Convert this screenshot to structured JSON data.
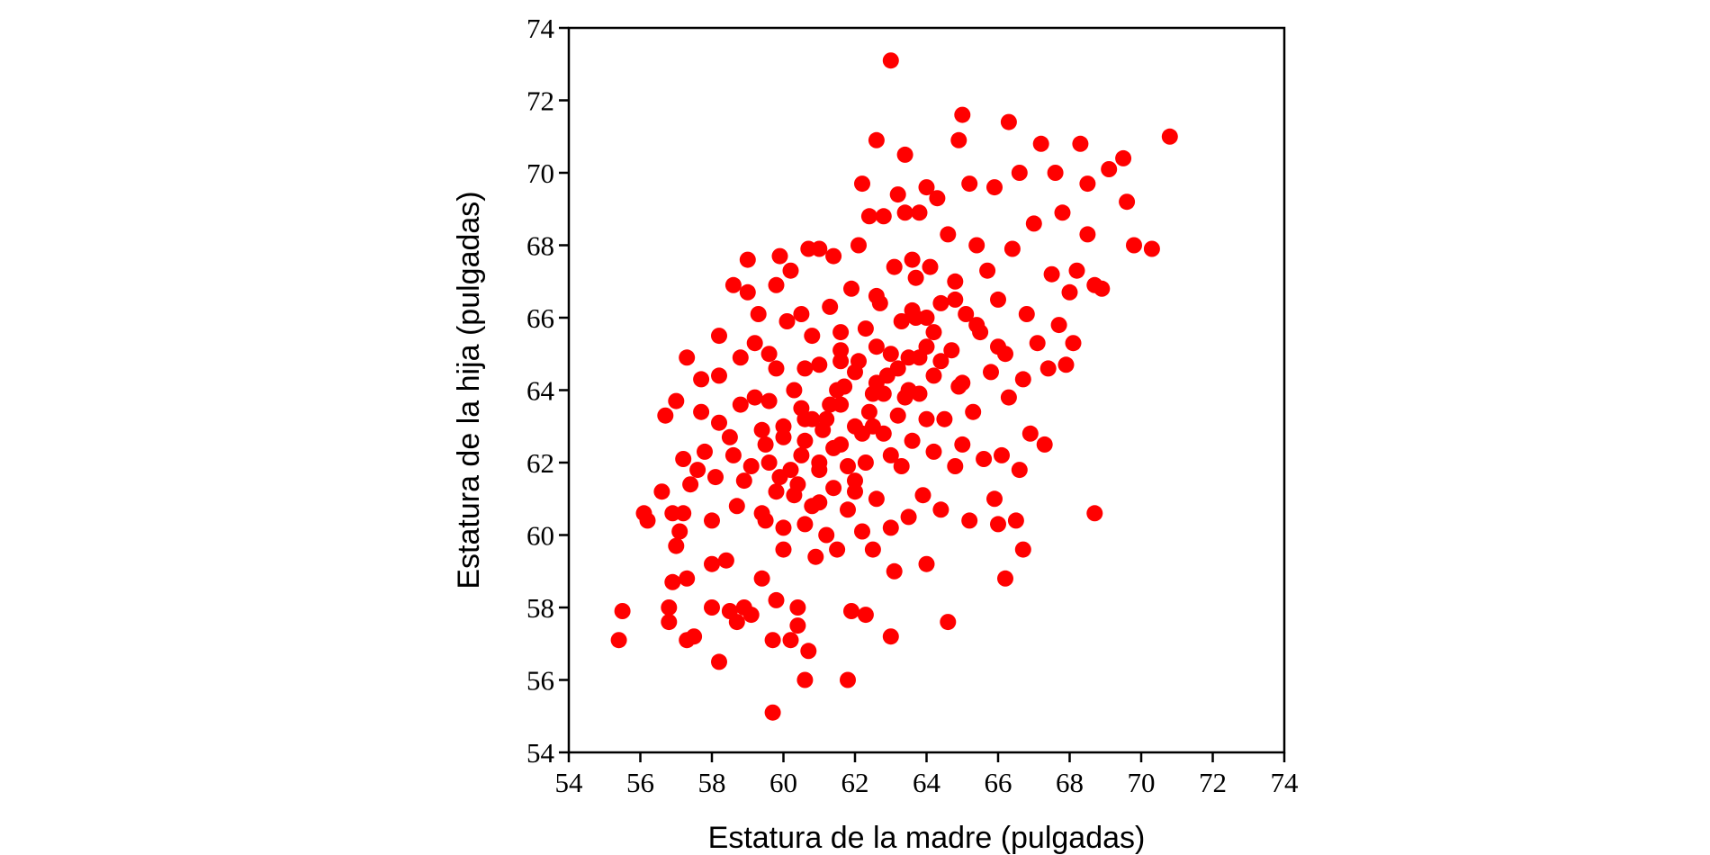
{
  "chart_data": {
    "type": "scatter",
    "title": "",
    "xlabel": "Estatura de la madre (pulgadas)",
    "ylabel": "Estatura de la hija (pulgadas)",
    "xlim": [
      54,
      74
    ],
    "ylim": [
      54,
      74
    ],
    "x_ticks": [
      "54",
      "56",
      "58",
      "60",
      "62",
      "64",
      "66",
      "68",
      "70",
      "72",
      "74"
    ],
    "y_ticks": [
      "54",
      "56",
      "58",
      "60",
      "62",
      "64",
      "66",
      "68",
      "70",
      "72",
      "74"
    ],
    "grid": false,
    "legend": "none",
    "marker_color": "#ff0000",
    "series": [
      {
        "points": [
          [
            55.4,
            57.1
          ],
          [
            55.5,
            57.9
          ],
          [
            56.1,
            60.6
          ],
          [
            56.2,
            60.4
          ],
          [
            56.6,
            61.2
          ],
          [
            56.7,
            63.3
          ],
          [
            56.8,
            58.0
          ],
          [
            56.8,
            57.6
          ],
          [
            56.9,
            58.7
          ],
          [
            56.9,
            60.6
          ],
          [
            57.0,
            63.7
          ],
          [
            57.0,
            59.7
          ],
          [
            57.1,
            60.1
          ],
          [
            57.2,
            62.1
          ],
          [
            57.2,
            60.6
          ],
          [
            57.3,
            64.9
          ],
          [
            57.3,
            57.1
          ],
          [
            57.3,
            58.8
          ],
          [
            57.4,
            61.4
          ],
          [
            57.5,
            57.2
          ],
          [
            57.6,
            61.8
          ],
          [
            57.7,
            63.4
          ],
          [
            57.7,
            64.3
          ],
          [
            57.8,
            62.3
          ],
          [
            58.0,
            60.4
          ],
          [
            58.0,
            59.2
          ],
          [
            58.0,
            58.0
          ],
          [
            58.1,
            61.6
          ],
          [
            58.2,
            63.1
          ],
          [
            58.2,
            64.4
          ],
          [
            58.2,
            56.5
          ],
          [
            58.2,
            65.5
          ],
          [
            58.4,
            59.3
          ],
          [
            58.5,
            62.7
          ],
          [
            58.5,
            57.9
          ],
          [
            58.6,
            66.9
          ],
          [
            58.7,
            57.6
          ],
          [
            58.7,
            60.8
          ],
          [
            58.8,
            64.9
          ],
          [
            58.8,
            63.6
          ],
          [
            58.9,
            58.0
          ],
          [
            59.0,
            67.6
          ],
          [
            59.0,
            66.7
          ],
          [
            59.1,
            57.8
          ],
          [
            59.1,
            61.9
          ],
          [
            59.2,
            65.3
          ],
          [
            59.3,
            66.1
          ],
          [
            59.4,
            58.8
          ],
          [
            59.4,
            62.9
          ],
          [
            59.5,
            60.4
          ],
          [
            59.6,
            63.7
          ],
          [
            59.6,
            65.0
          ],
          [
            59.7,
            55.1
          ],
          [
            59.7,
            57.1
          ],
          [
            59.8,
            66.9
          ],
          [
            59.8,
            64.6
          ],
          [
            59.8,
            58.2
          ],
          [
            59.9,
            67.7
          ],
          [
            59.9,
            61.6
          ],
          [
            60.0,
            62.7
          ],
          [
            60.0,
            59.6
          ],
          [
            60.1,
            65.9
          ],
          [
            60.2,
            57.1
          ],
          [
            60.2,
            67.3
          ],
          [
            60.3,
            61.1
          ],
          [
            60.3,
            64.0
          ],
          [
            60.4,
            58.0
          ],
          [
            60.4,
            57.5
          ],
          [
            60.5,
            62.2
          ],
          [
            60.5,
            66.1
          ],
          [
            60.6,
            56.0
          ],
          [
            60.6,
            60.3
          ],
          [
            60.7,
            56.8
          ],
          [
            60.7,
            67.9
          ],
          [
            60.8,
            63.2
          ],
          [
            60.8,
            65.5
          ],
          [
            60.9,
            59.4
          ],
          [
            61.0,
            61.8
          ],
          [
            61.0,
            67.9
          ],
          [
            61.0,
            64.7
          ],
          [
            61.1,
            62.9
          ],
          [
            61.2,
            60.0
          ],
          [
            61.3,
            66.3
          ],
          [
            61.3,
            63.6
          ],
          [
            61.4,
            67.7
          ],
          [
            61.4,
            61.3
          ],
          [
            61.5,
            59.6
          ],
          [
            61.6,
            65.1
          ],
          [
            61.6,
            62.5
          ],
          [
            61.7,
            64.1
          ],
          [
            61.8,
            56.0
          ],
          [
            61.8,
            60.7
          ],
          [
            61.9,
            57.9
          ],
          [
            61.9,
            66.8
          ],
          [
            62.0,
            63.0
          ],
          [
            62.0,
            61.5
          ],
          [
            62.1,
            68.0
          ],
          [
            62.1,
            64.8
          ],
          [
            62.2,
            69.7
          ],
          [
            62.2,
            60.1
          ],
          [
            62.3,
            62.0
          ],
          [
            62.3,
            57.8
          ],
          [
            62.3,
            65.7
          ],
          [
            62.4,
            68.8
          ],
          [
            62.5,
            63.9
          ],
          [
            62.5,
            59.6
          ],
          [
            62.6,
            70.9
          ],
          [
            62.6,
            61.0
          ],
          [
            62.7,
            66.4
          ],
          [
            62.8,
            68.8
          ],
          [
            62.8,
            62.8
          ],
          [
            62.9,
            64.4
          ],
          [
            63.0,
            57.2
          ],
          [
            63.0,
            73.1
          ],
          [
            63.0,
            60.2
          ],
          [
            63.1,
            67.4
          ],
          [
            63.1,
            59.0
          ],
          [
            63.2,
            69.4
          ],
          [
            63.2,
            63.3
          ],
          [
            63.3,
            65.9
          ],
          [
            63.3,
            61.9
          ],
          [
            63.4,
            68.9
          ],
          [
            63.4,
            70.5
          ],
          [
            63.5,
            64.9
          ],
          [
            63.5,
            60.5
          ],
          [
            63.6,
            62.6
          ],
          [
            63.7,
            67.1
          ],
          [
            63.7,
            66.0
          ],
          [
            63.8,
            68.9
          ],
          [
            63.8,
            63.9
          ],
          [
            63.9,
            61.1
          ],
          [
            64.0,
            59.2
          ],
          [
            64.0,
            65.2
          ],
          [
            64.0,
            69.6
          ],
          [
            64.1,
            67.4
          ],
          [
            64.2,
            62.3
          ],
          [
            64.2,
            64.4
          ],
          [
            64.3,
            69.3
          ],
          [
            64.4,
            66.4
          ],
          [
            64.4,
            60.7
          ],
          [
            64.5,
            63.2
          ],
          [
            64.6,
            57.6
          ],
          [
            64.6,
            68.3
          ],
          [
            64.7,
            65.1
          ],
          [
            64.8,
            61.9
          ],
          [
            64.8,
            67.0
          ],
          [
            64.9,
            70.9
          ],
          [
            64.9,
            64.1
          ],
          [
            65.0,
            71.6
          ],
          [
            65.0,
            62.5
          ],
          [
            65.1,
            66.1
          ],
          [
            65.2,
            69.7
          ],
          [
            65.2,
            60.4
          ],
          [
            65.3,
            63.4
          ],
          [
            65.4,
            68.0
          ],
          [
            65.5,
            65.6
          ],
          [
            65.6,
            62.1
          ],
          [
            65.7,
            67.3
          ],
          [
            65.8,
            64.5
          ],
          [
            65.9,
            69.6
          ],
          [
            65.9,
            61.0
          ],
          [
            66.0,
            60.3
          ],
          [
            66.0,
            66.5
          ],
          [
            66.1,
            62.2
          ],
          [
            66.2,
            58.8
          ],
          [
            66.2,
            65.0
          ],
          [
            66.3,
            71.4
          ],
          [
            66.3,
            63.8
          ],
          [
            66.4,
            67.9
          ],
          [
            66.5,
            60.4
          ],
          [
            66.6,
            61.8
          ],
          [
            66.6,
            70.0
          ],
          [
            66.7,
            59.6
          ],
          [
            66.7,
            64.3
          ],
          [
            66.8,
            66.1
          ],
          [
            66.9,
            62.8
          ],
          [
            67.0,
            68.6
          ],
          [
            67.1,
            65.3
          ],
          [
            67.2,
            70.8
          ],
          [
            67.3,
            62.5
          ],
          [
            67.4,
            64.6
          ],
          [
            67.5,
            67.2
          ],
          [
            67.6,
            70.0
          ],
          [
            67.7,
            65.8
          ],
          [
            67.8,
            68.9
          ],
          [
            67.9,
            64.7
          ],
          [
            68.0,
            66.7
          ],
          [
            68.1,
            65.3
          ],
          [
            68.2,
            67.3
          ],
          [
            68.3,
            70.8
          ],
          [
            68.5,
            69.7
          ],
          [
            68.5,
            68.3
          ],
          [
            68.7,
            60.6
          ],
          [
            68.7,
            66.9
          ],
          [
            68.9,
            66.8
          ],
          [
            69.1,
            70.1
          ],
          [
            69.5,
            70.4
          ],
          [
            69.6,
            69.2
          ],
          [
            69.8,
            68.0
          ],
          [
            70.3,
            67.9
          ],
          [
            70.8,
            71.0
          ],
          [
            59.5,
            62.5
          ],
          [
            60.0,
            63.0
          ],
          [
            60.5,
            63.5
          ],
          [
            61.0,
            62.0
          ],
          [
            61.5,
            64.0
          ],
          [
            62.0,
            64.5
          ],
          [
            62.5,
            63.0
          ],
          [
            63.0,
            65.0
          ],
          [
            63.5,
            64.0
          ],
          [
            64.0,
            66.0
          ],
          [
            60.2,
            61.8
          ],
          [
            61.2,
            63.2
          ],
          [
            62.2,
            62.8
          ],
          [
            63.2,
            64.6
          ],
          [
            64.2,
            65.6
          ],
          [
            60.8,
            60.8
          ],
          [
            61.8,
            61.9
          ],
          [
            62.8,
            63.9
          ],
          [
            63.8,
            64.9
          ],
          [
            64.8,
            66.5
          ],
          [
            59.8,
            61.2
          ],
          [
            60.6,
            62.6
          ],
          [
            61.6,
            63.6
          ],
          [
            62.6,
            65.2
          ],
          [
            63.6,
            66.2
          ],
          [
            58.9,
            61.5
          ],
          [
            59.4,
            60.6
          ],
          [
            60.4,
            61.4
          ],
          [
            61.4,
            62.4
          ],
          [
            62.4,
            63.4
          ],
          [
            63.4,
            63.8
          ],
          [
            64.4,
            64.8
          ],
          [
            65.4,
            65.8
          ],
          [
            59.2,
            63.8
          ],
          [
            60.6,
            64.6
          ],
          [
            61.6,
            65.6
          ],
          [
            62.6,
            66.6
          ],
          [
            63.6,
            67.6
          ],
          [
            60.0,
            60.2
          ],
          [
            61.0,
            60.9
          ],
          [
            62.0,
            61.2
          ],
          [
            63.0,
            62.2
          ],
          [
            64.0,
            63.2
          ],
          [
            65.0,
            64.2
          ],
          [
            66.0,
            65.2
          ],
          [
            58.6,
            62.2
          ],
          [
            59.6,
            62.0
          ],
          [
            60.6,
            63.2
          ],
          [
            61.6,
            64.8
          ],
          [
            62.6,
            64.2
          ]
        ]
      }
    ]
  }
}
